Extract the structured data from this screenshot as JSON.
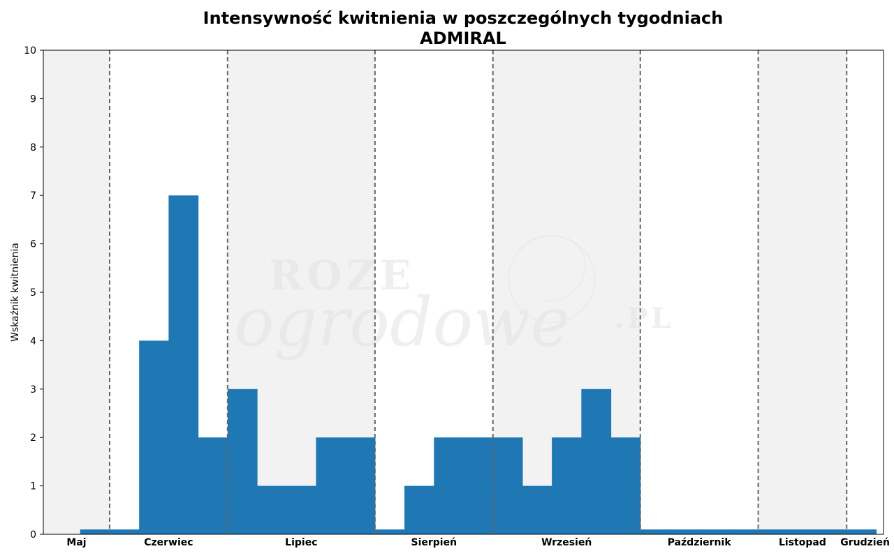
{
  "chart_data": {
    "type": "bar",
    "title": "Intensywność kwitnienia w poszczególnych tygodniach",
    "subtitle": "ADMIRAL",
    "xlabel": "",
    "ylabel": "Wskaźnik kwitnienia",
    "ylim": [
      0,
      10
    ],
    "yticks": [
      0,
      1,
      2,
      3,
      4,
      5,
      6,
      7,
      8,
      9,
      10
    ],
    "grid": false,
    "week_count": 28.5,
    "months": [
      {
        "label": "Maj",
        "start": 0,
        "end": 2.25,
        "shaded": true
      },
      {
        "label": "Czerwiec",
        "start": 2.25,
        "end": 6.25,
        "shaded": false
      },
      {
        "label": "Lipiec",
        "start": 6.25,
        "end": 11.25,
        "shaded": true
      },
      {
        "label": "Sierpień",
        "start": 11.25,
        "end": 15.25,
        "shaded": false
      },
      {
        "label": "Wrzesień",
        "start": 15.25,
        "end": 20.25,
        "shaded": true
      },
      {
        "label": "Październik",
        "start": 20.25,
        "end": 24.25,
        "shaded": false
      },
      {
        "label": "Listopad",
        "start": 24.25,
        "end": 27.25,
        "shaded": true
      },
      {
        "label": "Grudzień",
        "start": 27.25,
        "end": 28.5,
        "shaded": false
      }
    ],
    "bars": [
      {
        "start": 1.25,
        "end": 2.25,
        "value": 0.1
      },
      {
        "start": 2.25,
        "end": 3.25,
        "value": 0.1
      },
      {
        "start": 3.25,
        "end": 4.25,
        "value": 4
      },
      {
        "start": 4.25,
        "end": 5.25,
        "value": 7
      },
      {
        "start": 5.25,
        "end": 6.25,
        "value": 2
      },
      {
        "start": 6.25,
        "end": 7.25,
        "value": 3
      },
      {
        "start": 7.25,
        "end": 8.25,
        "value": 1
      },
      {
        "start": 8.25,
        "end": 9.25,
        "value": 1
      },
      {
        "start": 9.25,
        "end": 10.25,
        "value": 2
      },
      {
        "start": 10.25,
        "end": 11.25,
        "value": 2
      },
      {
        "start": 11.25,
        "end": 12.25,
        "value": 0.1
      },
      {
        "start": 12.25,
        "end": 13.25,
        "value": 1
      },
      {
        "start": 13.25,
        "end": 14.25,
        "value": 2
      },
      {
        "start": 14.25,
        "end": 15.25,
        "value": 2
      },
      {
        "start": 15.25,
        "end": 16.25,
        "value": 2
      },
      {
        "start": 16.25,
        "end": 17.25,
        "value": 1
      },
      {
        "start": 17.25,
        "end": 18.25,
        "value": 2
      },
      {
        "start": 18.25,
        "end": 19.25,
        "value": 3
      },
      {
        "start": 19.25,
        "end": 20.25,
        "value": 2
      },
      {
        "start": 20.25,
        "end": 21.25,
        "value": 0.1
      },
      {
        "start": 21.25,
        "end": 22.25,
        "value": 0.1
      },
      {
        "start": 22.25,
        "end": 23.25,
        "value": 0.1
      },
      {
        "start": 23.25,
        "end": 24.25,
        "value": 0.1
      },
      {
        "start": 24.25,
        "end": 25.25,
        "value": 0.1
      },
      {
        "start": 25.25,
        "end": 26.25,
        "value": 0.1
      },
      {
        "start": 26.25,
        "end": 27.25,
        "value": 0.1
      },
      {
        "start": 27.25,
        "end": 28.25,
        "value": 0.1
      }
    ],
    "colors": {
      "bar": "#1f77b4",
      "shade": "#f2f2f2",
      "divider": "#666666",
      "watermark": "#e0e0e0"
    },
    "watermark": {
      "line1": "ROZE",
      "line2": "ogrodowe",
      "suffix": ".PL"
    }
  }
}
